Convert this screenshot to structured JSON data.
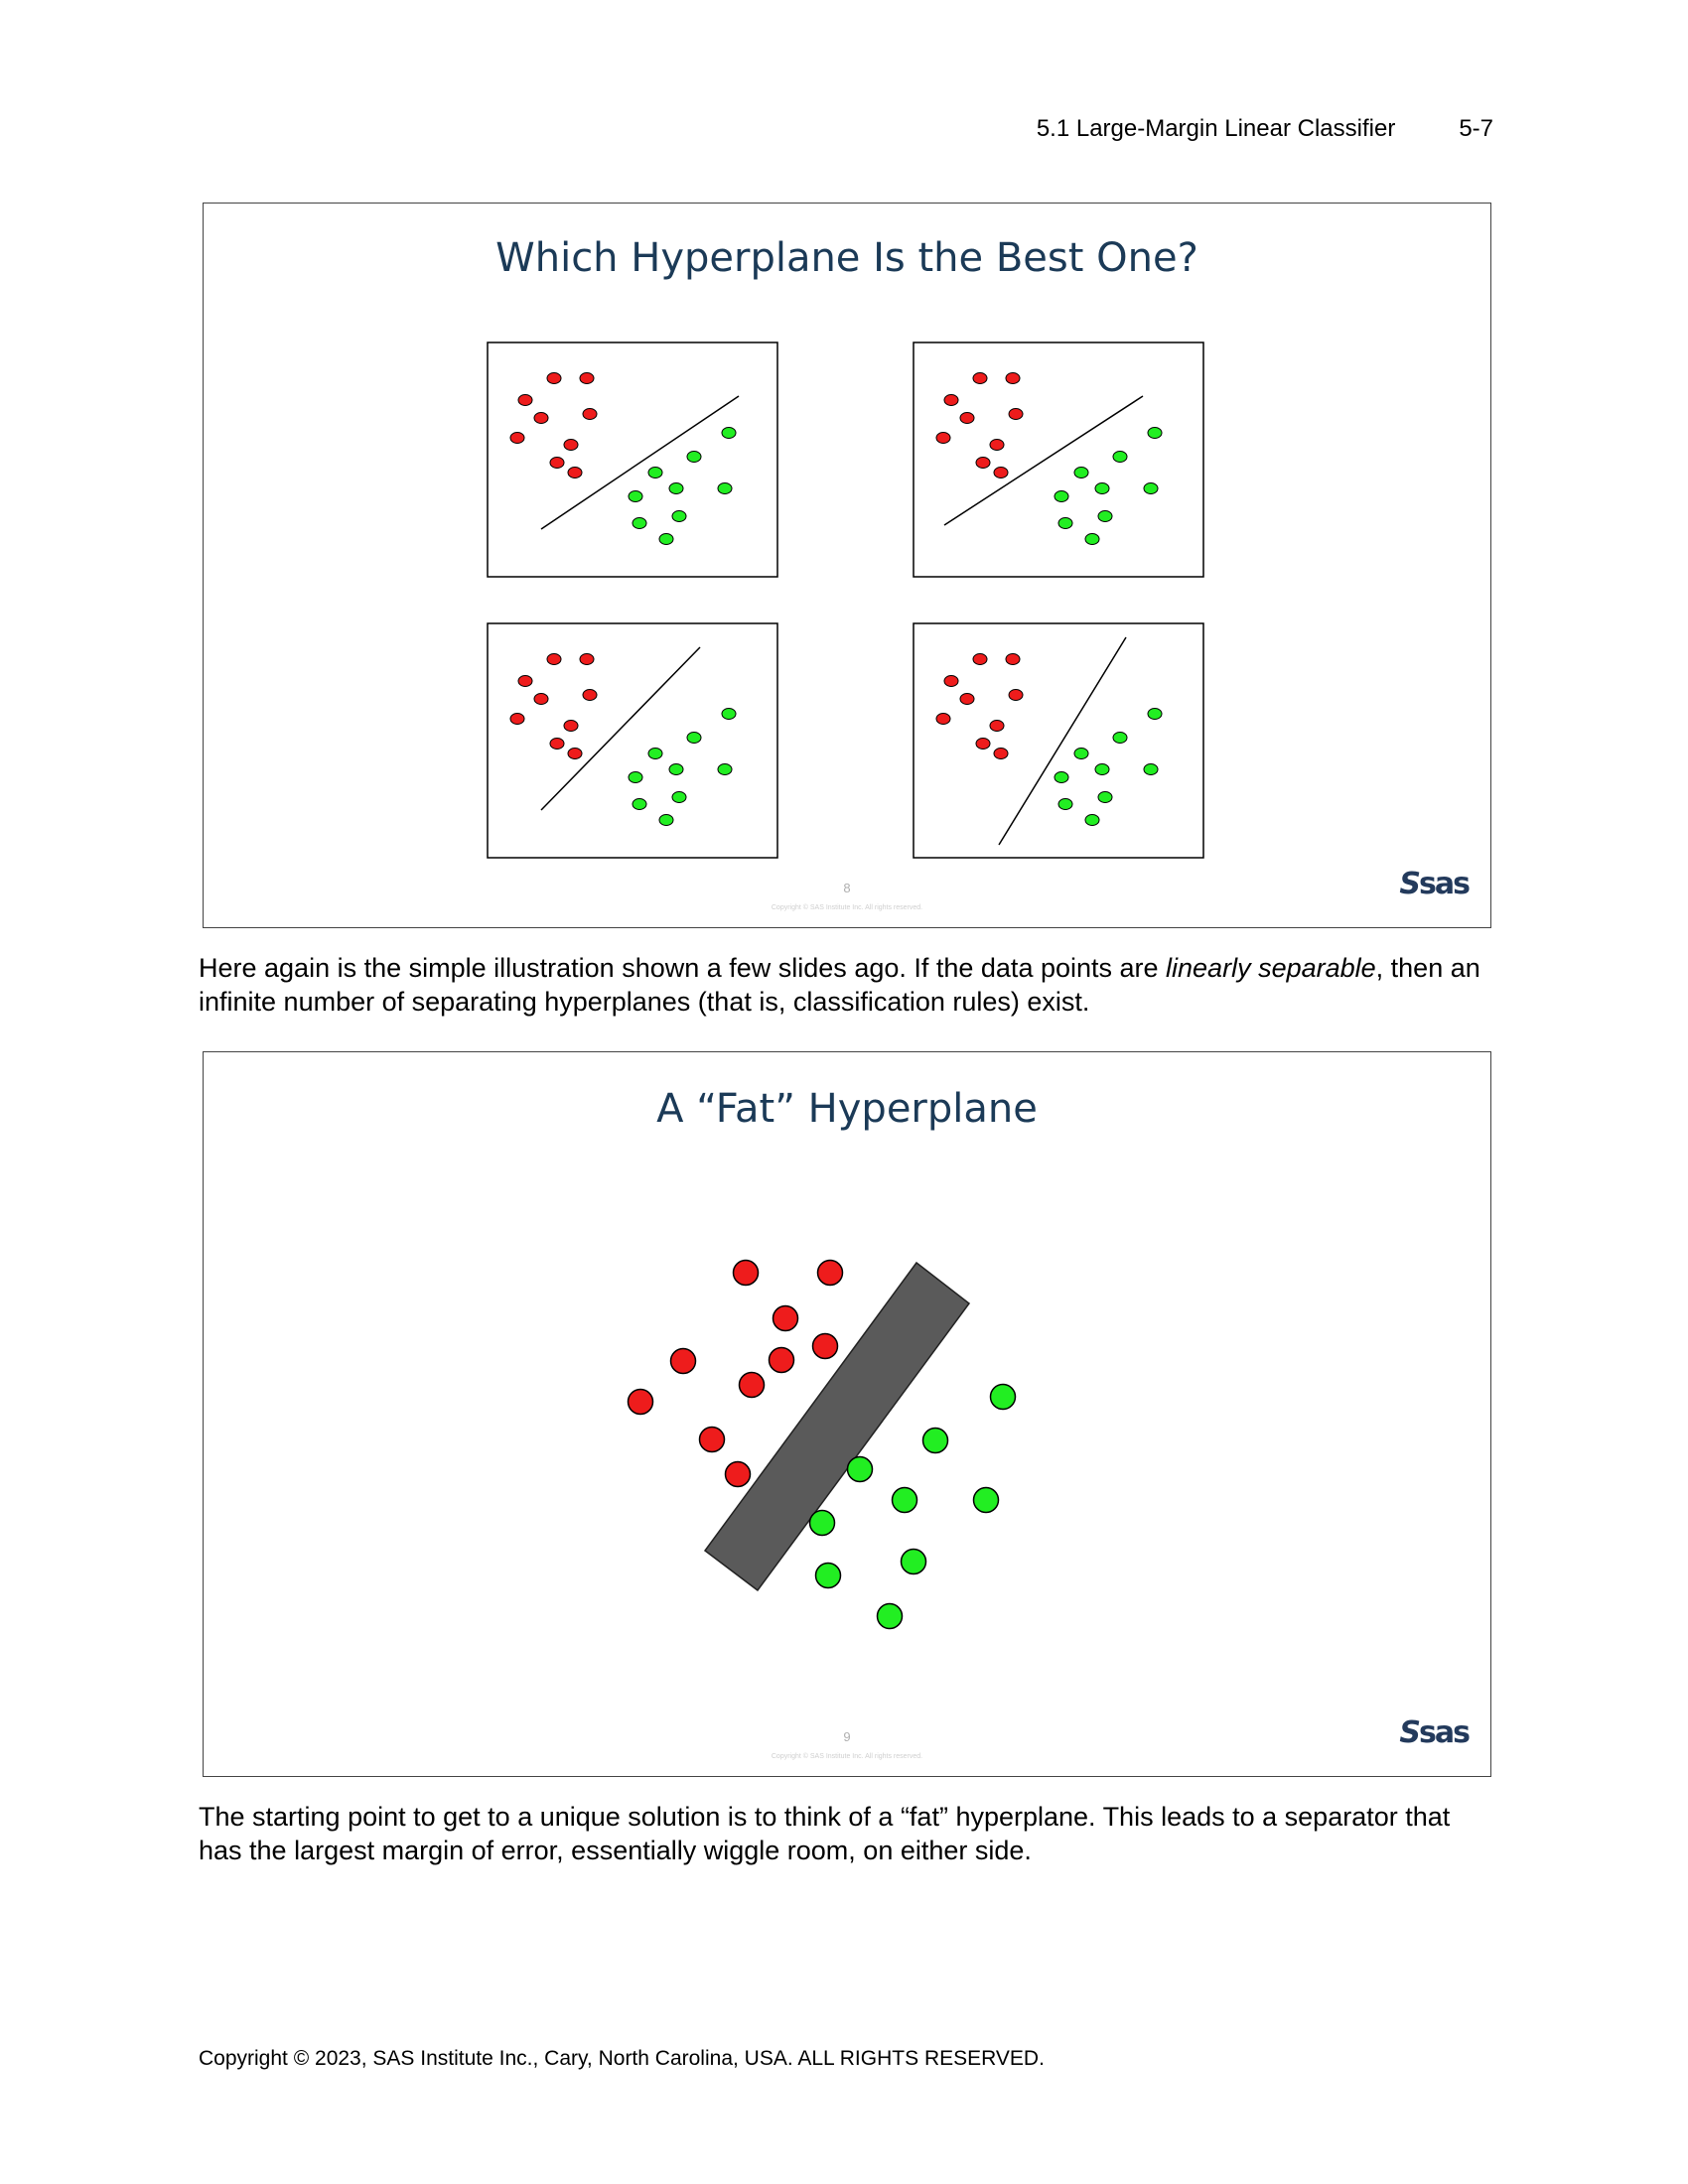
{
  "header": {
    "section": "5.1  Large-Margin Linear Classifier",
    "page": "5-7"
  },
  "slide1": {
    "title": "Which Hyperplane Is the Best One?",
    "number": "8",
    "copyright": "Copyright © SAS Institute Inc. All rights reserved."
  },
  "slide2": {
    "title": "A “Fat” Hyperplane",
    "number": "9",
    "copyright": "Copyright © SAS Institute Inc. All rights reserved."
  },
  "logo": {
    "text": "sas"
  },
  "para1": {
    "text1": "Here again is the simple illustration shown a few slides ago. If the data points are ",
    "italic": "linearly separable",
    "text2": ", then an infinite number of separating hyperplanes (that is, classification rules) exist."
  },
  "para2": {
    "text": "The starting point to get to a unique solution is to think of a “fat” hyperplane. This leads to a separator that has the largest margin of error, essentially wiggle room, on either side."
  },
  "footer": {
    "text": "Copyright © 2023, SAS Institute Inc., Cary, North Carolina, USA. ALL RIGHTS RESERVED."
  },
  "colors": {
    "red": "#ee1c1c",
    "green": "#22ee22",
    "bar": "#5a5a5a",
    "title": "#1b3a57"
  }
}
